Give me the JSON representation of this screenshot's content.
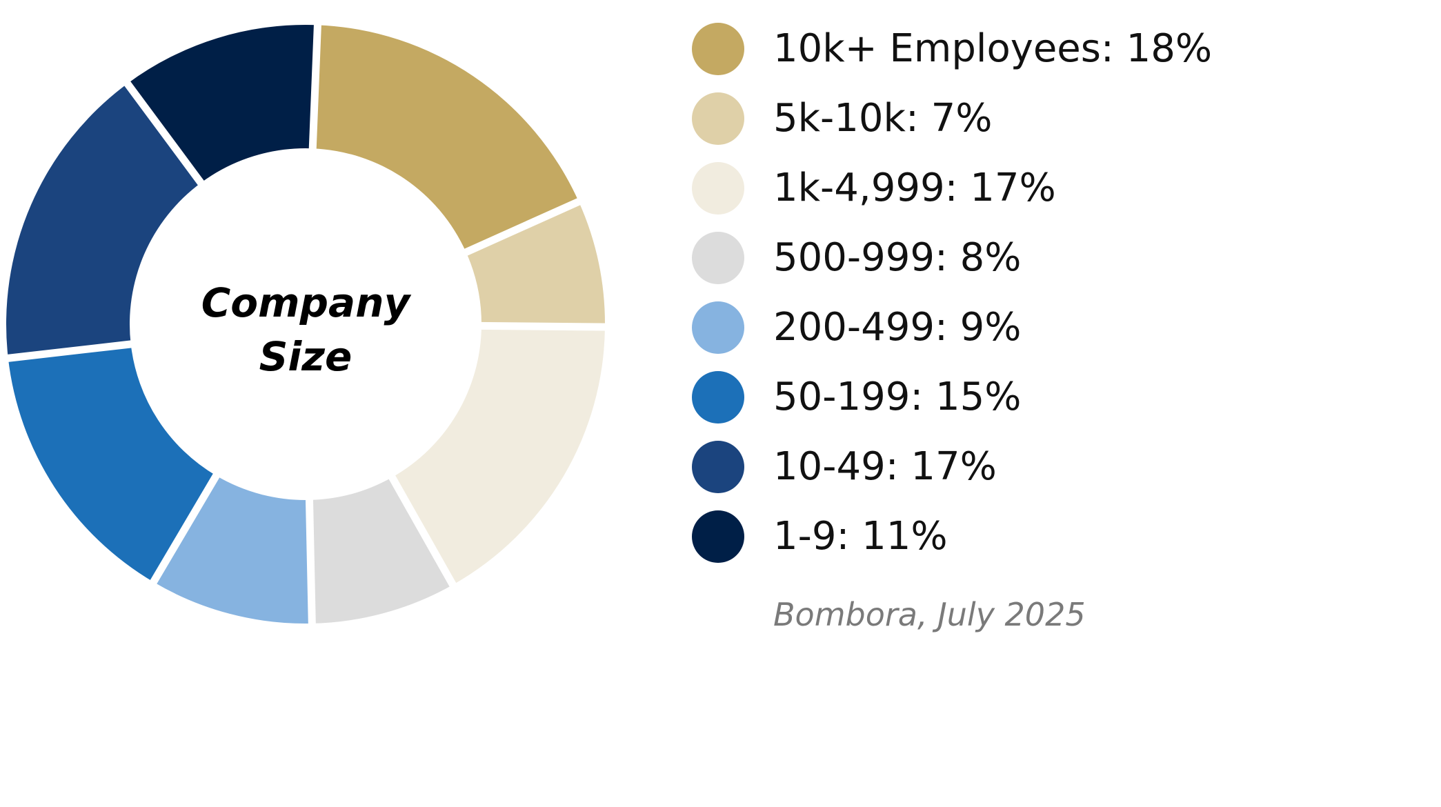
{
  "chart_data": {
    "type": "pie",
    "title": "Company Size",
    "center_label_lines": [
      "Company",
      "Size"
    ],
    "donut": true,
    "legend_position": "right",
    "slices": [
      {
        "label": "10k+ Employees",
        "value": 18,
        "display": "10k+ Employees: 18%",
        "color": "#C4A962"
      },
      {
        "label": "5k-10k",
        "value": 7,
        "display": "5k-10k: 7%",
        "color": "#DFD0A8"
      },
      {
        "label": "1k-4,999",
        "value": 17,
        "display": "1k-4,999: 17%",
        "color": "#F1ECDF"
      },
      {
        "label": "500-999",
        "value": 8,
        "display": "500-999: 8%",
        "color": "#DCDCDC"
      },
      {
        "label": "200-499",
        "value": 9,
        "display": "200-499: 9%",
        "color": "#86B3E0"
      },
      {
        "label": "50-199",
        "value": 15,
        "display": "50-199: 15%",
        "color": "#1C70B8"
      },
      {
        "label": "10-49",
        "value": 17,
        "display": "10-49: 17%",
        "color": "#1B447E"
      },
      {
        "label": "1-9",
        "value": 11,
        "display": "1-9: 11%",
        "color": "#001F47"
      }
    ]
  },
  "source_note": "Bombora, July 2025"
}
